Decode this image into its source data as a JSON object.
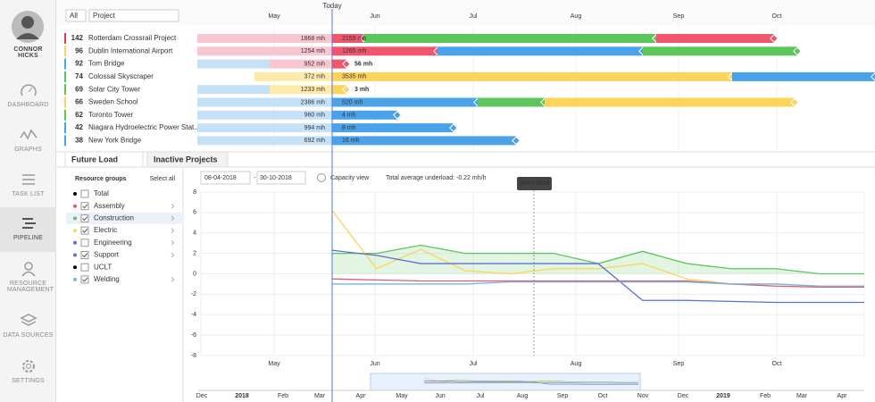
{
  "user": {
    "name": "CONNOR HICKS"
  },
  "nav": [
    "DASHBOARD",
    "GRAPHS",
    "TASK LIST",
    "PIPELINE",
    "RESOURCE MANAGEMENT",
    "DATA SOURCES",
    "SETTINGS"
  ],
  "filters": {
    "all": "All",
    "project": "Project"
  },
  "timeline": {
    "today": "Today",
    "months": [
      "May",
      "Jun",
      "Jul",
      "Aug",
      "Sep",
      "Oct"
    ]
  },
  "projects": [
    {
      "id": 142,
      "name": "Rotterdam Crossrail Project",
      "color": "#e53945",
      "past_hours": "1868 mh",
      "future_hours": "2159 mh"
    },
    {
      "id": 96,
      "name": "Dublin International Airport",
      "color": "#fdd35b",
      "past_hours": "1254 mh",
      "future_hours": "1265 mh"
    },
    {
      "id": 92,
      "name": "Tom Bridge",
      "color": "#4aa3ea",
      "past_hours": "952 mh",
      "future_hours": "56 mh"
    },
    {
      "id": 74,
      "name": "Colossal Skyscraper",
      "color": "#5cc65c",
      "past_hours": "372 mh",
      "future_hours": "3535 mh"
    },
    {
      "id": 69,
      "name": "Solar City Tower",
      "color": "#5cc65c",
      "past_hours": "1233 mh",
      "future_hours": "3 mh"
    },
    {
      "id": 66,
      "name": "Sweden School",
      "color": "#fdd35b",
      "past_hours": "2386 mh",
      "future_hours": "520 mh"
    },
    {
      "id": 62,
      "name": "Toronto Tower",
      "color": "#5cc65c",
      "past_hours": "960 mh",
      "future_hours": "4 mh"
    },
    {
      "id": 42,
      "name": "Niagara Hydroelectric Power Stat...",
      "color": "#4aa3ea",
      "past_hours": "994 mh",
      "future_hours": "8 mh"
    },
    {
      "id": 38,
      "name": "New York Bridge",
      "color": "#4aa3ea",
      "past_hours": "692 mh",
      "future_hours": "16 mh"
    }
  ],
  "tabs": [
    "Future Load",
    "Inactive Projects"
  ],
  "resource_groups": {
    "title": "Resource groups",
    "select_all": "Select all",
    "items": [
      {
        "name": "Total",
        "checked": false,
        "color": "#000000"
      },
      {
        "name": "Assembly",
        "checked": true,
        "color": "#e05a6a"
      },
      {
        "name": "Construction",
        "checked": true,
        "color": "#5cc65c"
      },
      {
        "name": "Electric",
        "checked": true,
        "color": "#fdd35b"
      },
      {
        "name": "Engineering",
        "checked": false,
        "color": "#5b6fd8"
      },
      {
        "name": "Support",
        "checked": true,
        "color": "#5b6fd8"
      },
      {
        "name": "UCLT",
        "checked": false,
        "color": "#000000"
      },
      {
        "name": "Welding",
        "checked": true,
        "color": "#6cb7ea"
      }
    ]
  },
  "controls": {
    "from": "08-04-2018",
    "to": "30-10-2018",
    "capacity_view": "Capacity view",
    "summary": "Total average underload: -0.22 mh/h"
  },
  "chart_data": {
    "type": "line",
    "tooltip": "20-07-2018",
    "month_labels": [
      "May",
      "Jun",
      "Jul",
      "Aug",
      "Sep",
      "Oct"
    ],
    "ylim": [
      -8,
      8
    ],
    "yticks": [
      8,
      6,
      4,
      2,
      0,
      -2,
      -4,
      -6,
      -8
    ],
    "grid": true,
    "series": [
      {
        "name": "Construction",
        "color": "#5cc65c",
        "values": [
          2,
          2,
          2.8,
          2,
          2,
          2,
          1,
          2.2,
          1,
          0.5,
          0.5,
          0,
          0
        ]
      },
      {
        "name": "Electric",
        "color": "#fdd35b",
        "values": [
          6.2,
          0.5,
          2.4,
          0.3,
          0,
          0.5,
          0.5,
          1,
          -0.5,
          -1,
          -1,
          -1.2,
          -1.2
        ]
      },
      {
        "name": "Support",
        "color": "#5b6fd8",
        "values": [
          2.3,
          1.8,
          1,
          1,
          1,
          1,
          1,
          -2.6,
          -2.6,
          -2.7,
          -2.8,
          -2.8,
          -2.8
        ]
      },
      {
        "name": "Assembly",
        "color": "#e05a6a",
        "values": [
          -0.5,
          -0.6,
          -0.7,
          -0.7,
          -0.7,
          -0.7,
          -0.7,
          -0.7,
          -0.7,
          -1,
          -1.2,
          -1.3,
          -1.3
        ]
      },
      {
        "name": "Welding",
        "color": "#6cb7ea",
        "values": [
          -1,
          -1,
          -1,
          -1,
          -0.8,
          -0.8,
          -0.8,
          -0.8,
          -0.8,
          -1,
          -1,
          -1.2,
          -1.2
        ]
      }
    ]
  },
  "minimap": {
    "labels": [
      "Dec",
      "2018",
      "Feb",
      "Mar",
      "Apr",
      "May",
      "Jun",
      "Jul",
      "Aug",
      "Sep",
      "Oct",
      "Nov",
      "Dec",
      "2019",
      "Feb",
      "Mar",
      "Apr"
    ]
  }
}
